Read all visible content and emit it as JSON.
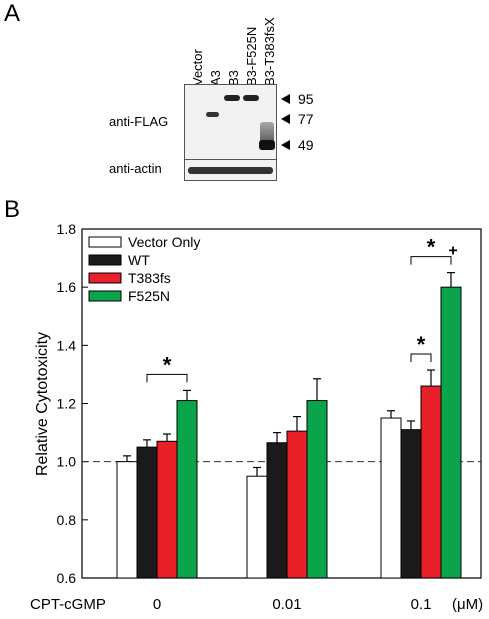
{
  "panel_a": {
    "letter": "A",
    "lanes": [
      "Vector",
      "A3",
      "B3",
      "B3-F525N",
      "B3-T383fsX"
    ],
    "blot_labels": [
      "anti-FLAG",
      "anti-actin"
    ],
    "mw_markers": [
      "95",
      "77",
      "49"
    ]
  },
  "panel_b": {
    "letter": "B",
    "x_prefix": "CPT-cGMP",
    "x_unit": "(μM)"
  },
  "chart_data": {
    "type": "bar",
    "categories": [
      "0",
      "0.01",
      "0.1"
    ],
    "ylabel": "Relative Cytotoxicity",
    "xlabel": "",
    "ylim": [
      0.6,
      1.8
    ],
    "yticks": [
      "0.6",
      "0.8",
      "1.0",
      "1.2",
      "1.4",
      "1.6",
      "1.8"
    ],
    "reference_line": 1.0,
    "legend_position": "top-left",
    "series": [
      {
        "name": "Vector Only",
        "color": "#ffffff",
        "values": [
          1.0,
          0.95,
          1.15
        ],
        "errors": [
          0.02,
          0.03,
          0.025
        ]
      },
      {
        "name": "WT",
        "color": "#1a1a1a",
        "values": [
          1.05,
          1.065,
          1.11
        ],
        "errors": [
          0.025,
          0.035,
          0.03
        ]
      },
      {
        "name": "T383fs",
        "color": "#e8202a",
        "values": [
          1.07,
          1.105,
          1.26
        ],
        "errors": [
          0.025,
          0.05,
          0.055
        ]
      },
      {
        "name": "F525N",
        "color": "#0aa54a",
        "values": [
          1.21,
          1.21,
          1.6
        ],
        "errors": [
          0.035,
          0.075,
          0.05
        ]
      }
    ],
    "annotations": [
      {
        "text": "*",
        "group": 0,
        "between": [
          "WT",
          "F525N"
        ]
      },
      {
        "text": "*",
        "group": 2,
        "between": [
          "WT",
          "T383fs"
        ]
      },
      {
        "text": "*",
        "group": 2,
        "between": [
          "WT",
          "F525N"
        ]
      },
      {
        "text": "+",
        "group": 2,
        "over": "F525N"
      }
    ]
  }
}
